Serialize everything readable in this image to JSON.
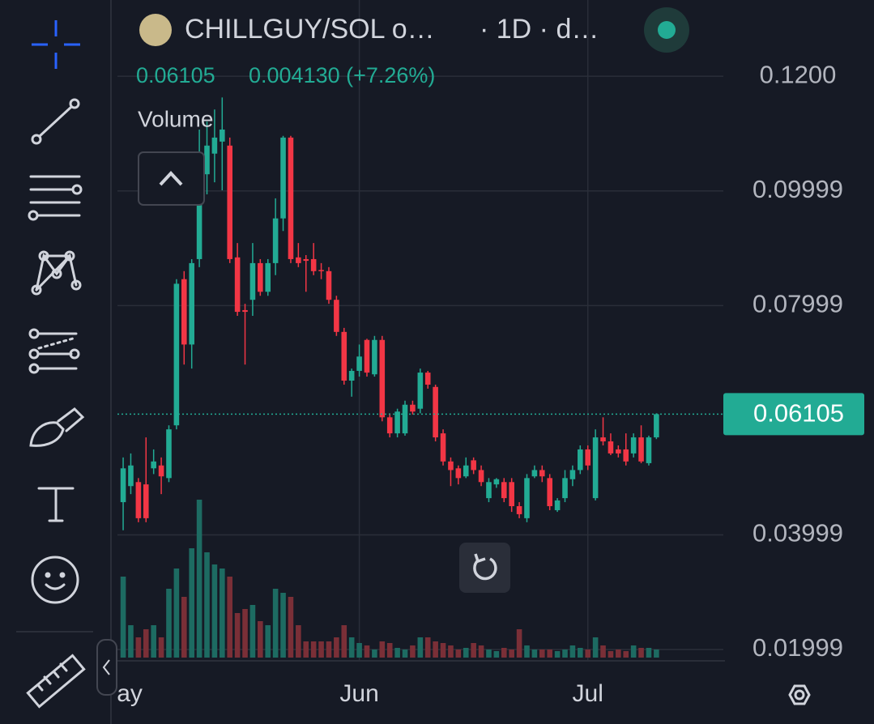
{
  "chart_data": {
    "type": "candlestick",
    "title": "CHILLGUY/SOL o…",
    "interval": "· 1D · d…",
    "last": {
      "value": 0.06105,
      "label": "0.06105"
    },
    "change_label": "0.004130 (+7.26%)",
    "volume_name": "Volume",
    "up_color": "#22ab94",
    "down_color": "#f23645",
    "up_volume_color": "#1d6b62",
    "down_volume_color": "#7a2f37",
    "grid": true,
    "xlim": [
      -0.75,
      79
    ],
    "xticks": [
      {
        "value": 0,
        "label": "ay"
      },
      {
        "value": 31,
        "label": "Jun"
      },
      {
        "value": 61,
        "label": "Jul"
      }
    ],
    "ylim": [
      0.01816,
      0.1333
    ],
    "yticks": [
      {
        "value": 0.12,
        "label": "0.1200"
      },
      0.09999,
      0.07999,
      0.03999,
      0.01999
    ],
    "open": [
      0.0457,
      0.0485,
      0.0492,
      0.0488,
      0.0516,
      0.0521,
      0.0499,
      0.0591,
      0.0846,
      0.0732,
      0.0881,
      0.1029,
      0.1065,
      0.1086,
      0.1079,
      0.0884,
      0.0792,
      0.081,
      0.0874,
      0.0824,
      0.0874,
      0.0952,
      0.1093,
      0.0884,
      0.0881,
      0.0881,
      0.0862,
      0.086,
      0.081,
      0.0754,
      0.0669,
      0.0686,
      0.074,
      0.068,
      0.074,
      0.0605,
      0.0577,
      0.0577,
      0.0627,
      0.062,
      0.0683,
      0.0658,
      0.0577,
      0.0528,
      0.0516,
      0.0502,
      0.053,
      0.0513,
      0.0464,
      0.0488,
      0.0492,
      0.0492,
      0.045,
      0.0429,
      0.0502,
      0.0513,
      0.0499,
      0.0443,
      0.0464,
      0.0497,
      0.0513,
      0.0549,
      0.0464,
      0.057,
      0.0563,
      0.0549,
      0.0549,
      0.0542,
      0.057,
      0.0525,
      0.057
    ],
    "high": [
      0.0535,
      0.0542,
      0.0499,
      0.057,
      0.0549,
      0.0535,
      0.0591,
      0.0846,
      0.086,
      0.0881,
      0.1107,
      0.1121,
      0.1142,
      0.1163,
      0.1093,
      0.0909,
      0.0803,
      0.0909,
      0.0881,
      0.0881,
      0.0987,
      0.1096,
      0.1096,
      0.0909,
      0.0888,
      0.0909,
      0.0874,
      0.0867,
      0.0817,
      0.0761,
      0.069,
      0.0732,
      0.0742,
      0.0747,
      0.0747,
      0.0612,
      0.062,
      0.0634,
      0.0634,
      0.069,
      0.0686,
      0.0662,
      0.0584,
      0.0535,
      0.0521,
      0.0535,
      0.0535,
      0.0521,
      0.0499,
      0.0499,
      0.0499,
      0.0499,
      0.0457,
      0.0506,
      0.0521,
      0.0521,
      0.0506,
      0.0464,
      0.0513,
      0.0521,
      0.0556,
      0.0556,
      0.0584,
      0.0605,
      0.0577,
      0.0556,
      0.0577,
      0.0577,
      0.0591,
      0.0573,
      0.0612
    ],
    "low": [
      0.0408,
      0.0471,
      0.0422,
      0.0422,
      0.0506,
      0.0471,
      0.0492,
      0.0584,
      0.0697,
      0.069,
      0.0867,
      0.0994,
      0.1015,
      0.1001,
      0.0874,
      0.0782,
      0.0697,
      0.0782,
      0.0817,
      0.0817,
      0.0853,
      0.093,
      0.0874,
      0.0867,
      0.0824,
      0.0853,
      0.0846,
      0.0803,
      0.0747,
      0.0662,
      0.0641,
      0.0676,
      0.0676,
      0.0676,
      0.0598,
      0.057,
      0.057,
      0.0573,
      0.061,
      0.0612,
      0.0655,
      0.0563,
      0.0521,
      0.0485,
      0.0488,
      0.0499,
      0.0506,
      0.0485,
      0.0457,
      0.0482,
      0.0457,
      0.044,
      0.0429,
      0.0422,
      0.0499,
      0.0492,
      0.0443,
      0.044,
      0.0457,
      0.0485,
      0.0506,
      0.0513,
      0.046,
      0.0556,
      0.0539,
      0.0535,
      0.0521,
      0.0535,
      0.0525,
      0.0521,
      0.0567
    ],
    "close": [
      0.0516,
      0.0521,
      0.0429,
      0.0429,
      0.0528,
      0.0502,
      0.0584,
      0.0838,
      0.0732,
      0.0874,
      0.1058,
      0.1079,
      0.1093,
      0.1107,
      0.0881,
      0.0789,
      0.0789,
      0.0874,
      0.0824,
      0.0874,
      0.0952,
      0.1093,
      0.0881,
      0.0874,
      0.0878,
      0.086,
      0.086,
      0.081,
      0.0754,
      0.0669,
      0.0686,
      0.0711,
      0.0683,
      0.074,
      0.0605,
      0.0577,
      0.0615,
      0.0627,
      0.0615,
      0.0683,
      0.0662,
      0.057,
      0.0528,
      0.0513,
      0.0499,
      0.0521,
      0.0513,
      0.0492,
      0.0492,
      0.0497,
      0.0464,
      0.045,
      0.0436,
      0.0499,
      0.0513,
      0.0502,
      0.045,
      0.046,
      0.0499,
      0.0513,
      0.0549,
      0.0521,
      0.057,
      0.0563,
      0.0542,
      0.0542,
      0.0528,
      0.057,
      0.0528,
      0.057,
      0.06105
    ],
    "volume": [
      100,
      40,
      25,
      35,
      40,
      25,
      85,
      110,
      75,
      135,
      195,
      130,
      115,
      110,
      100,
      55,
      60,
      65,
      45,
      40,
      85,
      80,
      75,
      40,
      20,
      20,
      20,
      20,
      25,
      40,
      25,
      18,
      15,
      10,
      20,
      18,
      12,
      10,
      15,
      25,
      25,
      20,
      18,
      15,
      10,
      12,
      18,
      15,
      10,
      8,
      12,
      10,
      35,
      15,
      10,
      10,
      10,
      8,
      10,
      15,
      12,
      10,
      25,
      15,
      8,
      10,
      8,
      15,
      12,
      12,
      10
    ]
  }
}
